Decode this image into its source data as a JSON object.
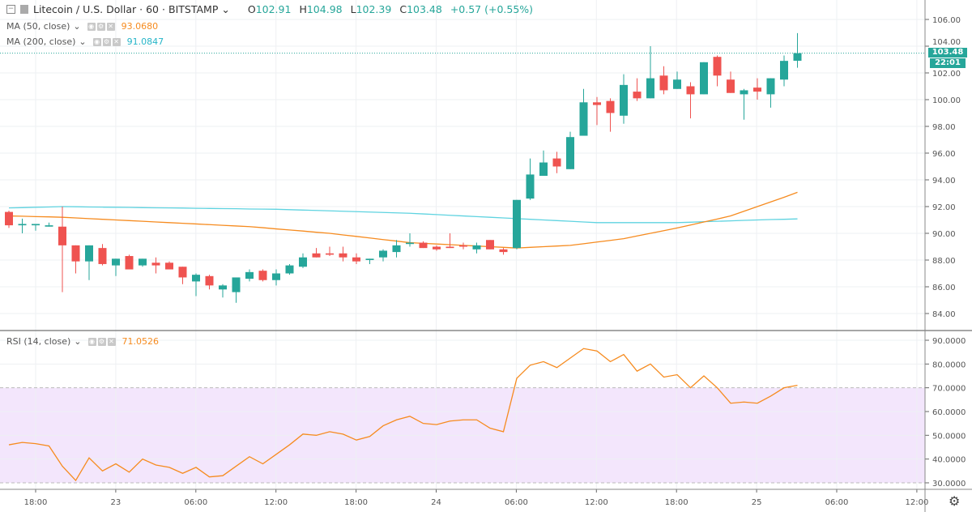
{
  "header": {
    "symbol": "Litecoin / U.S. Dollar",
    "interval": "60",
    "exchange": "BITSTAMP",
    "separator": "·",
    "ohlc": {
      "o_label": "O",
      "o": "102.91",
      "h_label": "H",
      "h": "104.98",
      "l_label": "L",
      "l": "102.39",
      "c_label": "C",
      "c": "103.48",
      "change": "+0.57 (+0.55%)"
    }
  },
  "indicators": [
    {
      "label": "MA (50, close)",
      "value": "93.0680",
      "color": "#f68b1f"
    },
    {
      "label": "MA (200, close)",
      "value": "91.0847",
      "color": "#4fc9d9"
    },
    {
      "label": "RSI (14, close)",
      "value": "71.0526",
      "color": "#f68b1f"
    }
  ],
  "price_tag": {
    "price": "103.48",
    "countdown": "22:01"
  },
  "colors": {
    "up": "#26a69a",
    "down": "#ef5350",
    "ma50": "#f68b1f",
    "ma200": "#5fd3e0",
    "rsi": "#f68b1f",
    "rsi_band": "#f3e6fc",
    "grid": "#eef0f3"
  },
  "chart_data": [
    {
      "type": "candlestick",
      "title": "Litecoin / U.S. Dollar · 60 · BITSTAMP",
      "ylim": [
        83,
        107
      ],
      "y_ticks": [
        "106.00",
        "104.00",
        "102.00",
        "100.00",
        "98.00",
        "96.00",
        "94.00",
        "92.00",
        "90.00",
        "88.00",
        "86.00",
        "84.00"
      ],
      "x_ticks": [
        "18:00",
        "23",
        "06:00",
        "12:00",
        "18:00",
        "24",
        "06:00",
        "12:00",
        "18:00",
        "25",
        "06:00",
        "12:00"
      ],
      "x_start": "22 16:00",
      "x_interval_hours": 1,
      "grid": true,
      "candles": [
        [
          91.6,
          91.7,
          90.4,
          90.6
        ],
        [
          90.6,
          91.1,
          90.0,
          90.7
        ],
        [
          90.6,
          90.7,
          90.2,
          90.7
        ],
        [
          90.5,
          90.8,
          90.5,
          90.6
        ],
        [
          90.5,
          92.0,
          85.6,
          89.1
        ],
        [
          89.1,
          89.1,
          87.0,
          87.9
        ],
        [
          87.9,
          89.1,
          86.5,
          89.1
        ],
        [
          88.9,
          89.2,
          87.6,
          87.7
        ],
        [
          87.6,
          88.1,
          86.8,
          88.1
        ],
        [
          88.3,
          88.4,
          87.3,
          87.3
        ],
        [
          87.6,
          88.1,
          87.5,
          88.1
        ],
        [
          87.8,
          88.2,
          87.0,
          87.6
        ],
        [
          87.8,
          87.9,
          87.3,
          87.3
        ],
        [
          87.5,
          87.5,
          86.2,
          86.7
        ],
        [
          86.4,
          87.0,
          85.3,
          86.9
        ],
        [
          86.8,
          86.9,
          85.8,
          86.1
        ],
        [
          85.8,
          86.2,
          85.2,
          86.1
        ],
        [
          85.6,
          86.6,
          84.8,
          86.7
        ],
        [
          86.6,
          87.3,
          86.4,
          87.1
        ],
        [
          87.2,
          87.3,
          86.4,
          86.5
        ],
        [
          86.5,
          87.3,
          86.1,
          87.0
        ],
        [
          87.0,
          87.7,
          86.9,
          87.6
        ],
        [
          87.5,
          88.5,
          87.4,
          88.2
        ],
        [
          88.5,
          88.9,
          88.2,
          88.2
        ],
        [
          88.5,
          89.0,
          88.3,
          88.4
        ],
        [
          88.5,
          89.0,
          87.9,
          88.2
        ],
        [
          88.2,
          88.5,
          87.7,
          87.9
        ],
        [
          88.0,
          88.1,
          87.7,
          88.1
        ],
        [
          88.2,
          88.8,
          87.9,
          88.7
        ],
        [
          88.6,
          89.5,
          88.2,
          89.1
        ],
        [
          89.2,
          90.0,
          89.0,
          89.3
        ],
        [
          89.3,
          89.4,
          88.9,
          88.9
        ],
        [
          89.0,
          89.1,
          88.7,
          88.8
        ],
        [
          89.0,
          90.0,
          88.9,
          88.9
        ],
        [
          89.1,
          89.3,
          88.8,
          89.0
        ],
        [
          88.8,
          89.3,
          88.5,
          89.1
        ],
        [
          89.5,
          89.5,
          88.8,
          88.8
        ],
        [
          88.8,
          88.9,
          88.4,
          88.6
        ],
        [
          88.9,
          92.5,
          88.8,
          92.5
        ],
        [
          92.6,
          95.6,
          92.5,
          94.4
        ],
        [
          94.3,
          96.2,
          94.3,
          95.3
        ],
        [
          95.6,
          96.1,
          94.5,
          95.0
        ],
        [
          94.8,
          97.6,
          94.8,
          97.2
        ],
        [
          97.3,
          100.8,
          97.3,
          99.8
        ],
        [
          99.8,
          100.2,
          98.1,
          99.6
        ],
        [
          99.9,
          100.1,
          97.6,
          99.0
        ],
        [
          98.8,
          101.9,
          98.2,
          101.1
        ],
        [
          100.6,
          101.6,
          99.9,
          100.1
        ],
        [
          100.1,
          104.0,
          100.1,
          101.6
        ],
        [
          101.8,
          102.5,
          100.4,
          100.7
        ],
        [
          100.8,
          102.1,
          100.8,
          101.5
        ],
        [
          101.0,
          101.3,
          98.6,
          100.4
        ],
        [
          100.4,
          102.8,
          100.4,
          102.8
        ],
        [
          103.2,
          103.3,
          101.0,
          101.8
        ],
        [
          101.5,
          102.1,
          100.5,
          100.5
        ],
        [
          100.4,
          100.8,
          98.5,
          100.7
        ],
        [
          100.9,
          101.6,
          100.0,
          100.6
        ],
        [
          100.4,
          101.6,
          99.4,
          101.6
        ],
        [
          101.5,
          103.3,
          101.0,
          102.9
        ],
        [
          102.91,
          104.98,
          102.39,
          103.48
        ]
      ],
      "candle_fields": [
        "open",
        "high",
        "low",
        "close"
      ],
      "series": [
        {
          "name": "MA (50, close)",
          "values": [
            91.3,
            91.28,
            91.25,
            91.23,
            91.2,
            91.15,
            91.1,
            91.05,
            91.0,
            90.95,
            90.9,
            90.85,
            90.8,
            90.75,
            90.7,
            90.65,
            90.6,
            90.55,
            90.5,
            90.42,
            90.33,
            90.25,
            90.17,
            90.08,
            90.0,
            89.88,
            89.77,
            89.65,
            89.53,
            89.42,
            89.3,
            89.25,
            89.2,
            89.15,
            89.1,
            89.05,
            89.0,
            88.95,
            88.9,
            88.95,
            89.0,
            89.05,
            89.1,
            89.22,
            89.35,
            89.47,
            89.6,
            89.8,
            90.0,
            90.2,
            90.4,
            90.62,
            90.85,
            91.07,
            91.3,
            91.65,
            92.0,
            92.35,
            92.7,
            93.07
          ]
        },
        {
          "name": "MA (200, close)",
          "values": [
            91.9,
            91.92,
            91.95,
            91.97,
            92.0,
            91.99,
            91.97,
            91.96,
            91.95,
            91.94,
            91.92,
            91.91,
            91.9,
            91.89,
            91.87,
            91.86,
            91.85,
            91.84,
            91.82,
            91.81,
            91.8,
            91.77,
            91.74,
            91.71,
            91.68,
            91.65,
            91.62,
            91.59,
            91.56,
            91.53,
            91.5,
            91.45,
            91.4,
            91.35,
            91.3,
            91.25,
            91.2,
            91.15,
            91.1,
            91.05,
            91.0,
            90.95,
            90.9,
            90.85,
            90.8,
            90.8,
            90.8,
            90.8,
            90.8,
            90.8,
            90.8,
            90.83,
            90.87,
            90.9,
            90.93,
            90.97,
            91.0,
            91.03,
            91.05,
            91.08
          ]
        }
      ]
    },
    {
      "type": "line",
      "title": "RSI (14, close)",
      "ylim": [
        25,
        93
      ],
      "y_ticks": [
        "90.0000",
        "80.0000",
        "70.0000",
        "60.0000",
        "50.0000",
        "40.0000",
        "30.0000"
      ],
      "band": [
        30,
        70
      ],
      "series": [
        {
          "name": "RSI (14, close)",
          "values": [
            46,
            47,
            46.5,
            45.5,
            37,
            31,
            40.5,
            35,
            38,
            34.5,
            40,
            37.5,
            36.5,
            34,
            36.5,
            32.5,
            33,
            37,
            41,
            38,
            42,
            46,
            50.5,
            50,
            51.5,
            50.5,
            48,
            49.5,
            54,
            56.5,
            58,
            55,
            54.5,
            56,
            56.5,
            56.5,
            53,
            51.5,
            74,
            79.5,
            81,
            78.5,
            82.5,
            86.5,
            85.5,
            81,
            84,
            77,
            80,
            74.5,
            75.5,
            70,
            75,
            70,
            63.5,
            64,
            63.5,
            66.5,
            70,
            71.05
          ]
        }
      ]
    }
  ]
}
